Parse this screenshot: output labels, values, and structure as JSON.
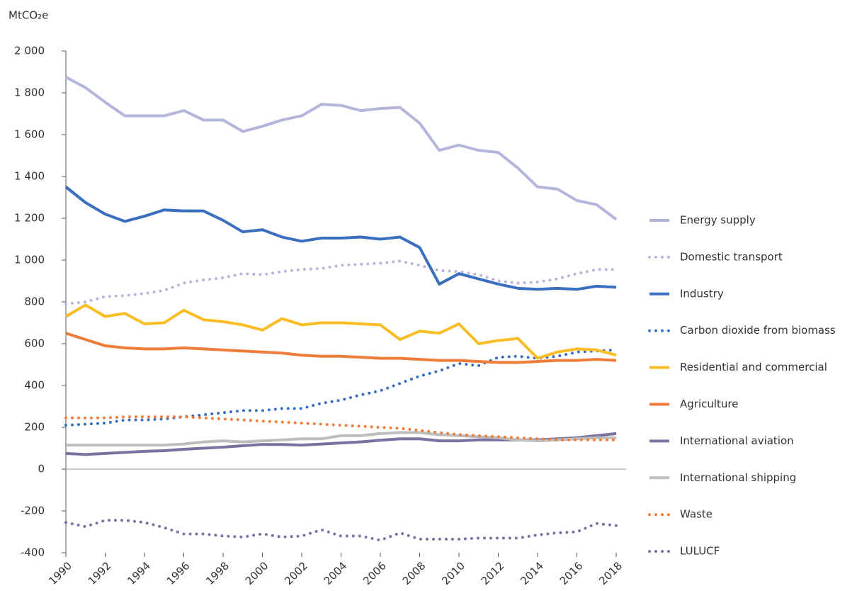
{
  "chart_data": {
    "type": "line",
    "y_label": "MtCO₂e",
    "x": [
      1990,
      1991,
      1992,
      1993,
      1994,
      1995,
      1996,
      1997,
      1998,
      1999,
      2000,
      2001,
      2002,
      2003,
      2004,
      2005,
      2006,
      2007,
      2008,
      2009,
      2010,
      2011,
      2012,
      2013,
      2014,
      2015,
      2016,
      2017,
      2018
    ],
    "xlim": [
      1990,
      2018
    ],
    "xticks": [
      1990,
      1992,
      1994,
      1996,
      1998,
      2000,
      2002,
      2004,
      2006,
      2008,
      2010,
      2012,
      2014,
      2016,
      2018
    ],
    "ylim": [
      -400,
      2000
    ],
    "yticks": [
      -400,
      -200,
      0,
      200,
      400,
      600,
      800,
      {
        "value": 1000,
        "label": "1 000"
      },
      {
        "value": 1200,
        "label": "1 200"
      },
      {
        "value": 1400,
        "label": "1 400"
      },
      {
        "value": 1600,
        "label": "1 600"
      },
      {
        "value": 1800,
        "label": "1 800"
      },
      {
        "value": 2000,
        "label": "2 000"
      }
    ],
    "legend": "right",
    "series": [
      {
        "name": "Energy supply",
        "color": "#b4b5db",
        "style": "solid",
        "values": [
          1875,
          1825,
          1755,
          1690,
          1690,
          1690,
          1715,
          1670,
          1670,
          1615,
          1640,
          1670,
          1690,
          1745,
          1740,
          1715,
          1725,
          1730,
          1655,
          1525,
          1550,
          1525,
          1515,
          1440,
          1350,
          1340,
          1285,
          1265,
          1195
        ]
      },
      {
        "name": "Domestic transport",
        "color": "#b4b5db",
        "style": "dotted",
        "values": [
          790,
          800,
          825,
          830,
          840,
          855,
          890,
          905,
          915,
          935,
          930,
          945,
          955,
          960,
          975,
          980,
          985,
          995,
          975,
          950,
          945,
          930,
          900,
          890,
          895,
          910,
          935,
          955,
          955
        ]
      },
      {
        "name": "Industry",
        "color": "#3a6fbf",
        "style": "solid",
        "values": [
          1350,
          1275,
          1220,
          1185,
          1210,
          1240,
          1235,
          1235,
          1190,
          1135,
          1145,
          1110,
          1090,
          1105,
          1105,
          1110,
          1100,
          1110,
          1060,
          885,
          935,
          910,
          885,
          865,
          860,
          865,
          860,
          875,
          870
        ]
      },
      {
        "name": "Carbon dioxide from biomass",
        "color": "#3a6fbf",
        "style": "dotted",
        "values": [
          210,
          215,
          220,
          235,
          235,
          240,
          250,
          260,
          270,
          280,
          280,
          290,
          290,
          315,
          330,
          355,
          375,
          410,
          445,
          470,
          505,
          495,
          535,
          540,
          530,
          540,
          560,
          565,
          570
        ]
      },
      {
        "name": "Residential and commercial",
        "color": "#fbbd25",
        "style": "solid",
        "values": [
          730,
          785,
          730,
          745,
          695,
          700,
          760,
          715,
          705,
          690,
          665,
          720,
          690,
          700,
          700,
          695,
          690,
          620,
          660,
          650,
          695,
          600,
          615,
          625,
          530,
          560,
          575,
          570,
          545
        ]
      },
      {
        "name": "Agriculture",
        "color": "#ef7d3a",
        "style": "solid",
        "values": [
          650,
          620,
          590,
          580,
          575,
          575,
          580,
          575,
          570,
          565,
          560,
          555,
          545,
          540,
          540,
          535,
          530,
          530,
          525,
          520,
          520,
          515,
          510,
          510,
          515,
          520,
          520,
          525,
          520
        ]
      },
      {
        "name": "International aviation",
        "color": "#7c70a2",
        "style": "solid",
        "values": [
          75,
          70,
          75,
          80,
          85,
          88,
          95,
          100,
          105,
          112,
          118,
          118,
          115,
          120,
          125,
          130,
          138,
          145,
          145,
          135,
          135,
          140,
          140,
          140,
          140,
          145,
          150,
          160,
          170
        ]
      },
      {
        "name": " International shipping",
        "color": "#bdbdbd",
        "style": "solid",
        "values": [
          115,
          115,
          115,
          115,
          115,
          115,
          120,
          130,
          135,
          130,
          135,
          140,
          145,
          145,
          160,
          160,
          170,
          175,
          175,
          165,
          160,
          155,
          150,
          140,
          135,
          140,
          145,
          150,
          150
        ]
      },
      {
        "name": "Waste",
        "color": "#ef7d3a",
        "style": "dotted",
        "values": [
          245,
          245,
          245,
          250,
          250,
          250,
          250,
          245,
          240,
          235,
          230,
          225,
          220,
          215,
          210,
          205,
          200,
          195,
          185,
          175,
          165,
          160,
          155,
          150,
          145,
          140,
          140,
          140,
          140
        ]
      },
      {
        "name": "LULUCF",
        "color": "#7c70a2",
        "style": "dotted",
        "values": [
          -255,
          -275,
          -245,
          -245,
          -255,
          -280,
          -310,
          -310,
          -320,
          -325,
          -310,
          -325,
          -320,
          -290,
          -320,
          -320,
          -340,
          -305,
          -335,
          -335,
          -335,
          -330,
          -330,
          -330,
          -315,
          -305,
          -300,
          -260,
          -270
        ]
      }
    ]
  }
}
